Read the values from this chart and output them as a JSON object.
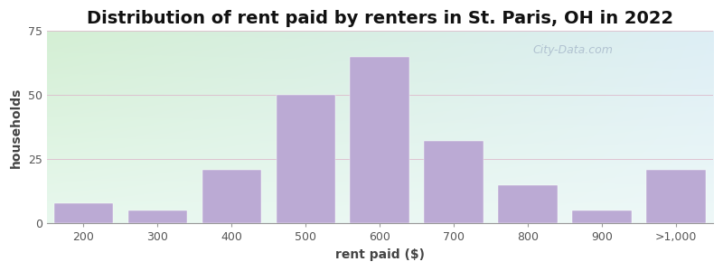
{
  "title": "Distribution of rent paid by renters in St. Paris, OH in 2022",
  "xlabel": "rent paid ($)",
  "ylabel": "households",
  "categories": [
    "200",
    "300",
    "400",
    "500",
    "600",
    "700",
    "800",
    "900",
    ">1,000"
  ],
  "values": [
    8,
    5,
    21,
    50,
    65,
    32,
    15,
    5,
    21
  ],
  "bar_color": "#bbaad4",
  "bar_edgecolor": "#bbaad4",
  "ylim": [
    0,
    75
  ],
  "yticks": [
    0,
    25,
    50,
    75
  ],
  "bg_color_topleft": "#d4efd4",
  "bg_color_topright": "#ddeef5",
  "bg_color_bottomleft": "#e8f8ee",
  "bg_color_bottomright": "#eef8f8",
  "title_fontsize": 14,
  "axis_label_fontsize": 10,
  "tick_fontsize": 9,
  "watermark_text": "City-Data.com",
  "bar_width": 0.8,
  "figwidth": 8.0,
  "figheight": 3.0,
  "dpi": 100
}
